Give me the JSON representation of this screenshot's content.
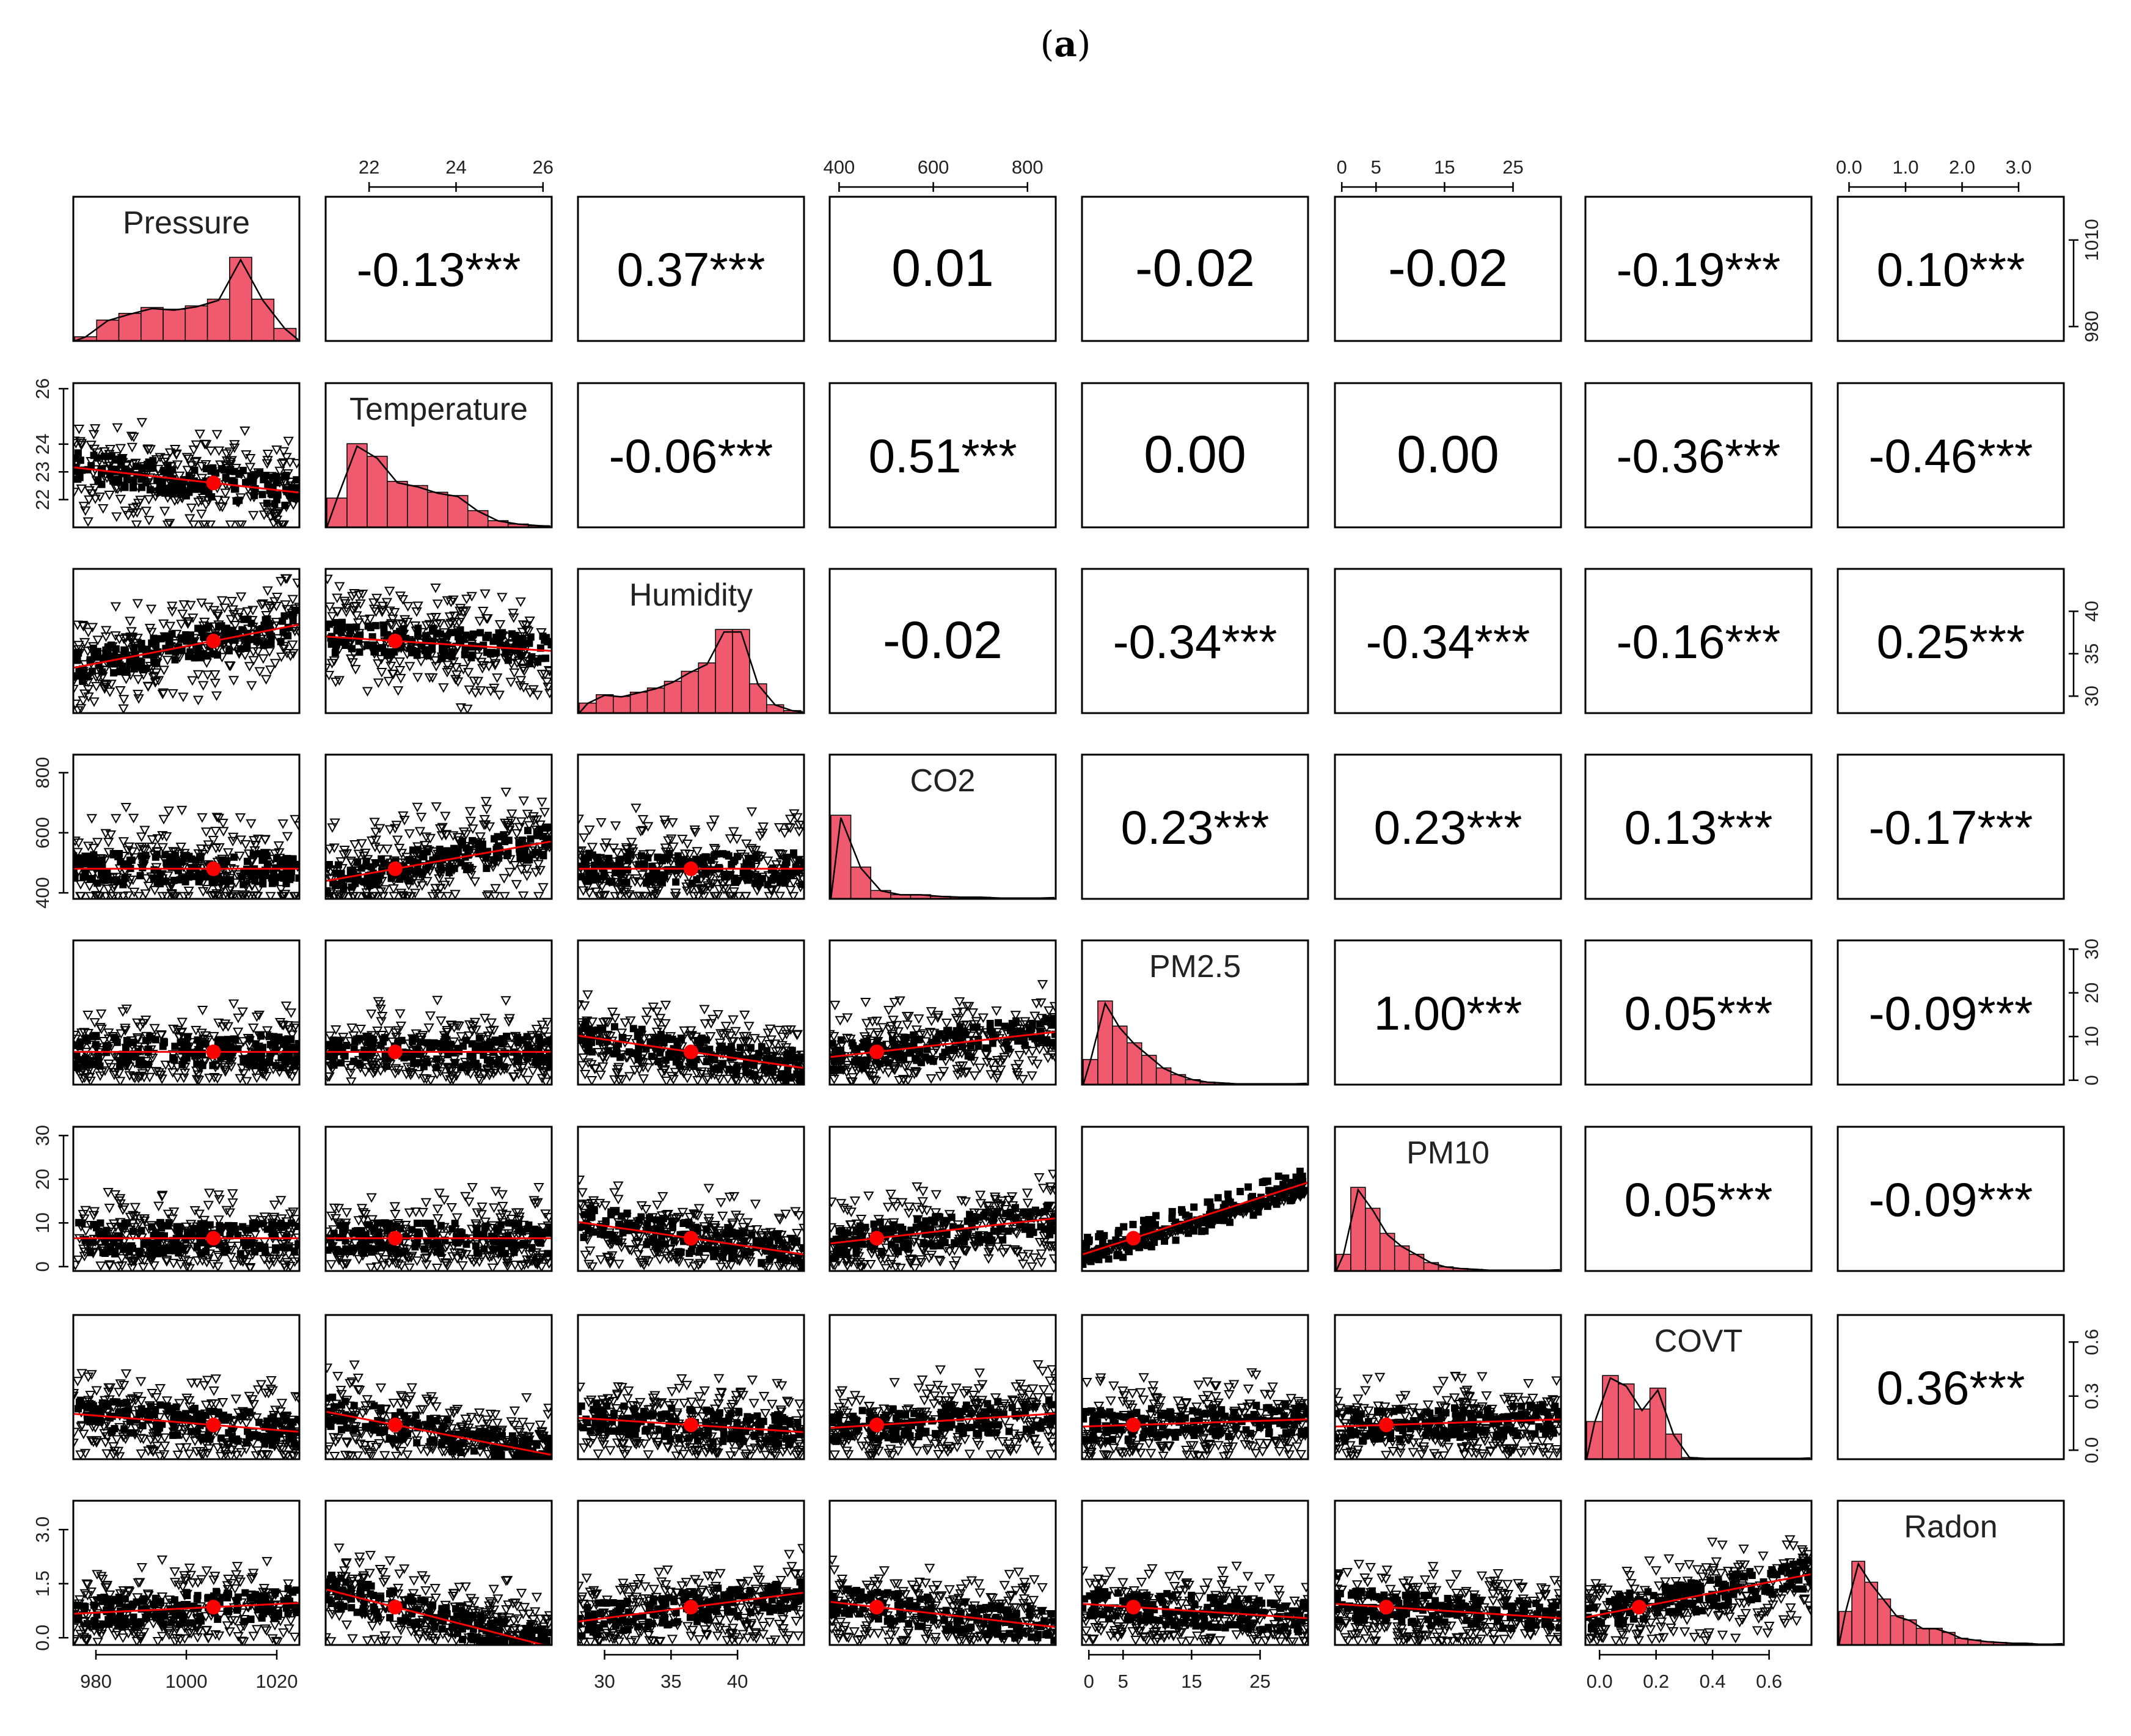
{
  "caption": {
    "open": "(",
    "letter": "a",
    "close": ")"
  },
  "chart_data": {
    "type": "scatterplot-matrix",
    "variables": [
      "Pressure",
      "Temperature",
      "Humidity",
      "CO2",
      "PM2.5",
      "PM10",
      "COVT",
      "Radon"
    ],
    "ranges": [
      [
        975,
        1025
      ],
      [
        21,
        26.2
      ],
      [
        28,
        45
      ],
      [
        380,
        860
      ],
      [
        -1,
        32
      ],
      [
        -1,
        32
      ],
      [
        -0.05,
        0.75
      ],
      [
        -0.2,
        3.8
      ]
    ],
    "means": [
      1006,
      22.6,
      36.5,
      480,
      6.5,
      6.5,
      0.14,
      0.85
    ],
    "ticks": {
      "top": [
        [],
        [
          "22",
          "24",
          "26"
        ],
        [],
        [
          "400",
          "600",
          "800"
        ],
        [],
        [
          "0",
          "5",
          "15",
          "25"
        ],
        [],
        [
          "0.0",
          "1.0",
          "2.0",
          "3.0"
        ]
      ],
      "bottom": [
        [
          "980",
          "1000",
          "1020"
        ],
        [],
        [
          "30",
          "35",
          "40"
        ],
        [],
        [
          "0",
          "5",
          "15",
          "25"
        ],
        [],
        [
          "0.0",
          "0.2",
          "0.4",
          "0.6"
        ],
        []
      ],
      "left": [
        [],
        [
          "22",
          "23",
          "24",
          "26"
        ],
        [],
        [
          "400",
          "600",
          "800"
        ],
        [],
        [
          "0",
          "10",
          "20",
          "30"
        ],
        [],
        [
          "0.0",
          "1.5",
          "3.0"
        ]
      ],
      "right": [
        [
          "980",
          "1010"
        ],
        [],
        [
          "30",
          "35",
          "40"
        ],
        [],
        [
          "0",
          "10",
          "20",
          "30"
        ],
        [],
        [
          "0.0",
          "0.3",
          "0.6"
        ],
        []
      ]
    },
    "correlations": [
      {
        "row": 0,
        "col": 1,
        "text": "-0.13***"
      },
      {
        "row": 0,
        "col": 2,
        "text": "0.37***"
      },
      {
        "row": 0,
        "col": 3,
        "text": "0.01"
      },
      {
        "row": 0,
        "col": 4,
        "text": "-0.02"
      },
      {
        "row": 0,
        "col": 5,
        "text": "-0.02"
      },
      {
        "row": 0,
        "col": 6,
        "text": "-0.19***"
      },
      {
        "row": 0,
        "col": 7,
        "text": "0.10***"
      },
      {
        "row": 1,
        "col": 2,
        "text": "-0.06***"
      },
      {
        "row": 1,
        "col": 3,
        "text": "0.51***"
      },
      {
        "row": 1,
        "col": 4,
        "text": "0.00"
      },
      {
        "row": 1,
        "col": 5,
        "text": "0.00"
      },
      {
        "row": 1,
        "col": 6,
        "text": "-0.36***"
      },
      {
        "row": 1,
        "col": 7,
        "text": "-0.46***"
      },
      {
        "row": 2,
        "col": 3,
        "text": "-0.02"
      },
      {
        "row": 2,
        "col": 4,
        "text": "-0.34***"
      },
      {
        "row": 2,
        "col": 5,
        "text": "-0.34***"
      },
      {
        "row": 2,
        "col": 6,
        "text": "-0.16***"
      },
      {
        "row": 2,
        "col": 7,
        "text": "0.25***"
      },
      {
        "row": 3,
        "col": 4,
        "text": "0.23***"
      },
      {
        "row": 3,
        "col": 5,
        "text": "0.23***"
      },
      {
        "row": 3,
        "col": 6,
        "text": "0.13***"
      },
      {
        "row": 3,
        "col": 7,
        "text": "-0.17***"
      },
      {
        "row": 4,
        "col": 5,
        "text": "1.00***"
      },
      {
        "row": 4,
        "col": 6,
        "text": "0.05***"
      },
      {
        "row": 4,
        "col": 7,
        "text": "-0.09***"
      },
      {
        "row": 5,
        "col": 6,
        "text": "0.05***"
      },
      {
        "row": 5,
        "col": 7,
        "text": "-0.09***"
      },
      {
        "row": 6,
        "col": 7,
        "text": "0.36***"
      }
    ],
    "histograms": [
      [
        0.05,
        0.25,
        0.33,
        0.4,
        0.38,
        0.42,
        0.5,
        1.0,
        0.5,
        0.15
      ],
      [
        0.35,
        1.0,
        0.85,
        0.55,
        0.5,
        0.42,
        0.38,
        0.2,
        0.08,
        0.04,
        0.02
      ],
      [
        0.12,
        0.22,
        0.2,
        0.25,
        0.3,
        0.38,
        0.5,
        0.6,
        1.0,
        1.0,
        0.35,
        0.1,
        0.03
      ],
      [
        1.0,
        0.38,
        0.1,
        0.05,
        0.05,
        0.03,
        0.02,
        0.02,
        0.01,
        0.01,
        0.01
      ],
      [
        0.3,
        1.0,
        0.7,
        0.5,
        0.35,
        0.2,
        0.12,
        0.06,
        0.03,
        0.02,
        0.01,
        0.01,
        0.01,
        0.01,
        0.01
      ],
      [
        0.2,
        1.0,
        0.75,
        0.45,
        0.3,
        0.2,
        0.1,
        0.05,
        0.03,
        0.02,
        0.01,
        0.01,
        0.01,
        0.01,
        0.01
      ],
      [
        0.45,
        1.0,
        0.9,
        0.6,
        0.85,
        0.3,
        0.02,
        0.01,
        0.01,
        0.01,
        0.01,
        0.01,
        0.01,
        0.01
      ],
      [
        0.4,
        1.0,
        0.75,
        0.55,
        0.35,
        0.3,
        0.2,
        0.2,
        0.15,
        0.08,
        0.06,
        0.04,
        0.03,
        0.02,
        0.02,
        0.01,
        0.01
      ]
    ],
    "trend_slopes": {
      "1,0": -0.35,
      "2,0": 0.6,
      "2,1": -0.2,
      "3,0": 0.0,
      "3,1": 0.55,
      "3,2": 0.0,
      "4,0": 0.0,
      "4,1": 0.0,
      "4,2": -0.45,
      "4,3": 0.35,
      "5,0": 0.0,
      "5,1": 0.0,
      "5,2": -0.45,
      "5,3": 0.35,
      "5,4": 1.0,
      "6,0": -0.25,
      "6,1": -0.6,
      "6,2": -0.2,
      "6,3": 0.2,
      "6,4": 0.1,
      "6,5": 0.1,
      "7,0": 0.15,
      "7,1": -0.8,
      "7,2": 0.4,
      "7,3": -0.35,
      "7,4": -0.2,
      "7,5": -0.2,
      "7,6": 0.6
    }
  }
}
